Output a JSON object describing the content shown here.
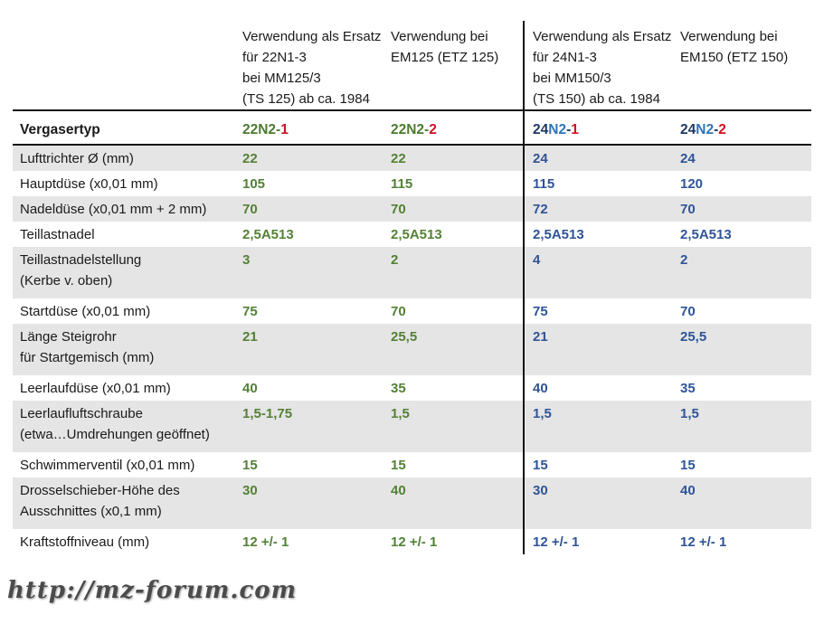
{
  "table": {
    "row_header_label": "Vergasertyp",
    "text_color": "#1a1a1a",
    "shaded_row_color": "#E6E5E5",
    "value_colors": {
      "left": "#538135",
      "right": "#2F5496"
    },
    "accent_colors": {
      "green": "#4E7B30",
      "navy": "#1F3864",
      "blue": "#2E75B6",
      "red": "#CE1126"
    },
    "columns": [
      {
        "header_lines": [
          "Verwendung als Ersatz",
          "für 22N1-3",
          "bei MM125/3",
          "(TS 125) ab ca. 1984"
        ],
        "type_parts": [
          {
            "text": "22N2-",
            "color": "#4E7B30"
          },
          {
            "text": "1",
            "color": "#CE1126"
          }
        ]
      },
      {
        "header_lines": [
          "Verwendung bei",
          "EM125 (ETZ 125)"
        ],
        "type_parts": [
          {
            "text": "22N2-",
            "color": "#4E7B30"
          },
          {
            "text": "2",
            "color": "#CE1126"
          }
        ]
      },
      {
        "header_lines": [
          "Verwendung als Ersatz",
          "für 24N1-3",
          "bei MM150/3",
          "(TS 150) ab ca. 1984"
        ],
        "type_parts": [
          {
            "text": "24",
            "color": "#1F3864"
          },
          {
            "text": "N2",
            "color": "#2E75B6"
          },
          {
            "text": "-",
            "color": "#1F3864"
          },
          {
            "text": "1",
            "color": "#CE1126"
          }
        ]
      },
      {
        "header_lines": [
          "Verwendung bei",
          "EM150 (ETZ 150)"
        ],
        "type_parts": [
          {
            "text": "24",
            "color": "#1F3864"
          },
          {
            "text": "N2",
            "color": "#2E75B6"
          },
          {
            "text": "-",
            "color": "#1F3864"
          },
          {
            "text": "2",
            "color": "#CE1126"
          }
        ]
      }
    ],
    "rows": [
      {
        "label_lines": [
          "Lufttrichter Ø (mm)"
        ],
        "values": [
          "22",
          "22",
          "24",
          "24"
        ],
        "shaded": true,
        "tall": false
      },
      {
        "label_lines": [
          "Hauptdüse (x0,01 mm)"
        ],
        "values": [
          "105",
          "115",
          "115",
          "120"
        ],
        "shaded": false,
        "tall": false
      },
      {
        "label_lines": [
          "Nadeldüse (x0,01 mm + 2 mm)"
        ],
        "values": [
          "70",
          "70",
          "72",
          "70"
        ],
        "shaded": true,
        "tall": false
      },
      {
        "label_lines": [
          "Teillastnadel"
        ],
        "values": [
          "2,5A513",
          "2,5A513",
          "2,5A513",
          "2,5A513"
        ],
        "shaded": false,
        "tall": false
      },
      {
        "label_lines": [
          "Teillastnadelstellung",
          "(Kerbe v. oben)"
        ],
        "values": [
          "3",
          "2",
          "4",
          "2"
        ],
        "shaded": true,
        "tall": true
      },
      {
        "label_lines": [
          "Startdüse (x0,01 mm)"
        ],
        "values": [
          "75",
          "70",
          "75",
          "70"
        ],
        "shaded": false,
        "tall": false
      },
      {
        "label_lines": [
          "Länge Steigrohr",
          "für Startgemisch (mm)"
        ],
        "values": [
          "21",
          "25,5",
          "21",
          "25,5"
        ],
        "shaded": true,
        "tall": true
      },
      {
        "label_lines": [
          "Leerlaufdüse (x0,01 mm)"
        ],
        "values": [
          "40",
          "35",
          "40",
          "35"
        ],
        "shaded": false,
        "tall": false
      },
      {
        "label_lines": [
          "Leerlaufluftschraube",
          "(etwa…Umdrehungen geöffnet)"
        ],
        "values": [
          "1,5-1,75",
          "1,5",
          "1,5",
          "1,5"
        ],
        "shaded": true,
        "tall": true
      },
      {
        "label_lines": [
          "Schwimmerventil (x0,01 mm)"
        ],
        "values": [
          "15",
          "15",
          "15",
          "15"
        ],
        "shaded": false,
        "tall": false
      },
      {
        "label_lines": [
          "Drosselschieber-Höhe des",
          "Ausschnittes (x0,1 mm)"
        ],
        "values": [
          "30",
          "40",
          "30",
          "40"
        ],
        "shaded": true,
        "tall": true
      },
      {
        "label_lines": [
          "Kraftstoffniveau (mm)"
        ],
        "values": [
          "12 +/- 1",
          "12 +/- 1",
          "12 +/- 1",
          "12 +/- 1"
        ],
        "shaded": false,
        "tall": false
      }
    ]
  },
  "watermark": {
    "text": "http://mz-forum.com"
  }
}
